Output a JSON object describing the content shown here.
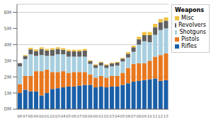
{
  "chart_data": {
    "type": "bar",
    "stacked": true,
    "title": "Weapons",
    "legend": "upper right",
    "grid": true,
    "categories": [
      "96",
      "97",
      "98",
      "99",
      "00",
      "01",
      "02",
      "03",
      "04",
      "05",
      "06",
      "07",
      "08",
      "09",
      "00",
      "01",
      "02",
      "03",
      "04",
      "05",
      "06",
      "07",
      "08",
      "09",
      "10",
      "11",
      "12",
      "13"
    ],
    "series": [
      {
        "name": "Rifles",
        "color": "#1a5fa8",
        "values": [
          1.0,
          1.2,
          1.1,
          1.1,
          0.85,
          1.0,
          1.25,
          1.3,
          1.35,
          1.4,
          1.4,
          1.45,
          1.5,
          1.5,
          1.35,
          1.4,
          1.35,
          1.4,
          1.4,
          1.5,
          1.6,
          1.7,
          1.75,
          1.8,
          1.85,
          1.9,
          1.75,
          1.8
        ]
      },
      {
        "name": "Pistols",
        "color": "#e8771e",
        "values": [
          0.55,
          0.85,
          0.95,
          1.25,
          1.5,
          1.45,
          1.05,
          1.0,
          1.0,
          0.85,
          0.9,
          0.85,
          0.8,
          0.65,
          0.6,
          0.65,
          0.6,
          0.65,
          0.65,
          0.75,
          0.95,
          1.1,
          1.1,
          1.05,
          1.15,
          1.35,
          1.6,
          1.65
        ]
      },
      {
        "name": "Shotguns",
        "color": "#a8cfe0",
        "values": [
          1.1,
          1.05,
          1.35,
          0.95,
          1.0,
          0.85,
          1.0,
          1.1,
          1.05,
          1.0,
          0.95,
          0.95,
          0.95,
          0.65,
          0.6,
          0.65,
          0.6,
          0.6,
          0.65,
          0.7,
          0.65,
          0.75,
          1.15,
          1.35,
          1.15,
          1.35,
          1.55,
          1.55
        ]
      },
      {
        "name": "Revolvers",
        "color": "#606060",
        "values": [
          0.2,
          0.2,
          0.3,
          0.3,
          0.38,
          0.33,
          0.38,
          0.33,
          0.28,
          0.33,
          0.33,
          0.33,
          0.38,
          0.18,
          0.18,
          0.18,
          0.18,
          0.18,
          0.18,
          0.18,
          0.23,
          0.28,
          0.33,
          0.38,
          0.43,
          0.48,
          0.48,
          0.48
        ]
      },
      {
        "name": "Misc",
        "color": "#f0c040",
        "values": [
          0.0,
          0.05,
          0.1,
          0.1,
          0.1,
          0.1,
          0.1,
          0.1,
          0.1,
          0.1,
          0.1,
          0.1,
          0.1,
          0.05,
          0.05,
          0.05,
          0.05,
          0.05,
          0.05,
          0.05,
          0.1,
          0.1,
          0.15,
          0.2,
          0.2,
          0.2,
          0.2,
          0.2
        ]
      }
    ],
    "ylim": [
      0,
      6.5
    ],
    "yticks": [
      {
        "value": 0,
        "label": "0M"
      },
      {
        "value": 1,
        "label": "1M"
      },
      {
        "value": 2,
        "label": "2M"
      },
      {
        "value": 3,
        "label": "3M"
      },
      {
        "value": 4,
        "label": "4M"
      },
      {
        "value": 5,
        "label": "5M"
      },
      {
        "value": 6,
        "label": "6M"
      }
    ]
  }
}
